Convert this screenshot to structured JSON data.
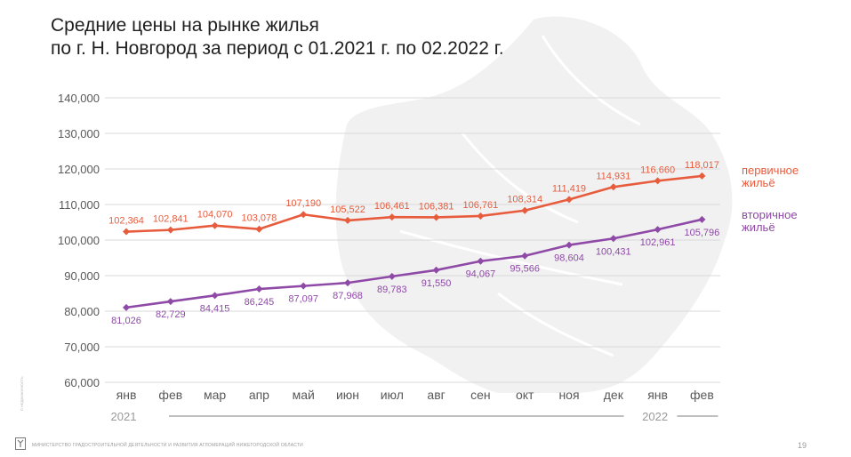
{
  "slide": {
    "title_line1": "Средние цены на рынке жилья",
    "title_line2": "по г. Н. Новгород за период с 01.2021 г. по 02.2022 г.",
    "footer": "МИНИСТЕРСТВО ГРАДОСТРОИТЕЛЬНОЙ ДЕЯТЕЛЬНОСТИ И РАЗВИТИЯ АГЛОМЕРАЦИЙ НИЖЕГОРОДСКОЙ ОБЛАСТИ",
    "page_number": "19",
    "side_text": "© НЕДВИЖИМОСТЬ"
  },
  "colors": {
    "primary": "#e85c3e",
    "secondary": "#8e4aa6",
    "grid": "#d9d9d9",
    "axis_text": "#595959",
    "timeline": "#bfbfbf",
    "map": "#f1f1f1"
  },
  "chart_data": {
    "type": "line",
    "title": "Средние цены на рынке жилья по г. Н. Новгород за период с 01.2021 г. по 02.2022 г.",
    "categories": [
      "янв",
      "фев",
      "мар",
      "апр",
      "май",
      "июн",
      "июл",
      "авг",
      "сен",
      "окт",
      "ноя",
      "дек",
      "янв",
      "фев"
    ],
    "years": [
      {
        "label": "2021",
        "start_index": 0,
        "end_index": 11
      },
      {
        "label": "2022",
        "start_index": 12,
        "end_index": 13
      }
    ],
    "ylim": [
      60000,
      140000
    ],
    "yticks": [
      60000,
      70000,
      80000,
      90000,
      100000,
      110000,
      120000,
      130000,
      140000
    ],
    "ytick_labels": [
      "60,000",
      "70,000",
      "80,000",
      "90,000",
      "100,000",
      "110,000",
      "120,000",
      "130,000",
      "140,000"
    ],
    "grid": true,
    "legend": "right",
    "series": [
      {
        "name": "первичное жильё",
        "legend_line1": "первичное",
        "legend_line2": "жильё",
        "color": "#e85c3e",
        "values": [
          102364,
          102841,
          104070,
          103078,
          107190,
          105522,
          106461,
          106381,
          106761,
          108314,
          111419,
          114931,
          116660,
          118017
        ],
        "labels": [
          "102,364",
          "102,841",
          "104,070",
          "103,078",
          "107,190",
          "105,522",
          "106,461",
          "106,381",
          "106,761",
          "108,314",
          "111,419",
          "114,931",
          "116,660",
          "118,017"
        ],
        "label_position": "above"
      },
      {
        "name": "вторичное жильё",
        "legend_line1": "вторичное",
        "legend_line2": "жильё",
        "color": "#8e4aa6",
        "values": [
          81026,
          82729,
          84415,
          86245,
          87097,
          87968,
          89783,
          91550,
          94067,
          95566,
          98604,
          100431,
          102961,
          105796
        ],
        "labels": [
          "81,026",
          "82,729",
          "84,415",
          "86,245",
          "87,097",
          "87,968",
          "89,783",
          "91,550",
          "94,067",
          "95,566",
          "98,604",
          "100,431",
          "102,961",
          "105,796"
        ],
        "label_position": "below"
      }
    ]
  }
}
